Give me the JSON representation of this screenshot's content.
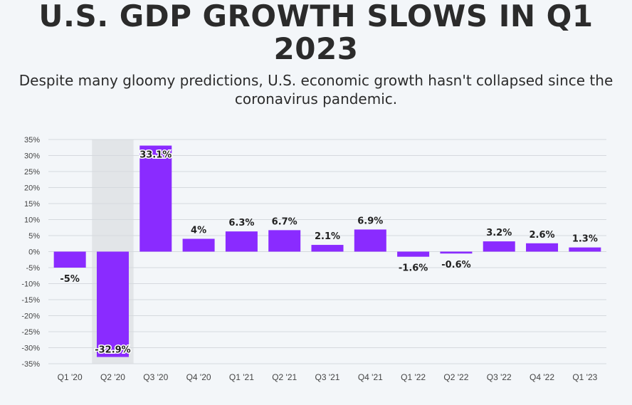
{
  "header": {
    "title": "U.S. GDP GROWTH SLOWS IN Q1 2023",
    "subtitle": "Despite many gloomy predictions, U.S. economic growth hasn't collapsed since the coronavirus pandemic."
  },
  "colors": {
    "bar": "#8a2bff",
    "highlight_band": "#e2e5e8",
    "grid": "#d5d9de",
    "background": "#f3f6f9"
  },
  "chart_data": {
    "type": "bar",
    "title": "U.S. GDP GROWTH SLOWS IN Q1 2023",
    "subtitle": "Despite many gloomy predictions, U.S. economic growth hasn't collapsed since the coronavirus pandemic.",
    "categories": [
      "Q1 '20",
      "Q2 '20",
      "Q3 '20",
      "Q4 '20",
      "Q1 '21",
      "Q2 '21",
      "Q3 '21",
      "Q4 '21",
      "Q1 '22",
      "Q2 '22",
      "Q3 '22",
      "Q4 '22",
      "Q1 '23"
    ],
    "values": [
      -5,
      -32.9,
      33.1,
      4,
      6.3,
      6.7,
      2.1,
      6.9,
      -1.6,
      -0.6,
      3.2,
      2.6,
      1.3
    ],
    "data_labels": [
      "-5%",
      "-32.9%",
      "33.1%",
      "4%",
      "6.3%",
      "6.7%",
      "2.1%",
      "6.9%",
      "-1.6%",
      "-0.6%",
      "3.2%",
      "2.6%",
      "1.3%"
    ],
    "y_ticks": [
      "35%",
      "30%",
      "25%",
      "20%",
      "15%",
      "10%",
      "5%",
      "0%",
      "-5%",
      "-10%",
      "-15%",
      "-20%",
      "-25%",
      "-30%",
      "-35%"
    ],
    "ylim": [
      -35,
      35
    ],
    "y_tick_step": 5,
    "grid": true,
    "highlighted_category": "Q2 '20",
    "xlabel": "",
    "ylabel": ""
  }
}
